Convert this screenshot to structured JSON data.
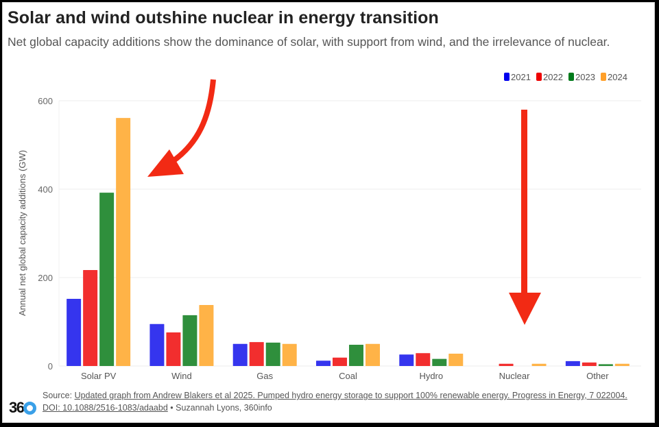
{
  "header": {
    "title": "Solar and wind outshine nuclear in energy transition",
    "subtitle": "Net global capacity additions show the dominance of solar, with support from wind, and the irrelevance of nuclear."
  },
  "footer": {
    "source_prefix": "Source: ",
    "source_link": "Updated graph from Andrew Blakers et al 2025. Pumped hydro energy storage to support 100% renewable energy. Progress in Energy, 7 022004. DOI: 10.1088/2516-1083/adaabd",
    "credit": " • Suzannah Lyons, 360info",
    "logo_text": "36",
    "logo_name": "360info"
  },
  "colors": {
    "bars": [
      "#3535ee",
      "#f22e2e",
      "#2f8f3c",
      "#ffb347"
    ],
    "legend": [
      "#0000ee",
      "#ee0000",
      "#007a1a",
      "#ffa02a"
    ],
    "arrow": "#f22a14",
    "grid": "#ececec"
  },
  "annotations": [
    {
      "type": "curved-arrow",
      "points_to": "Solar PV"
    },
    {
      "type": "straight-arrow",
      "points_to": "Nuclear"
    }
  ],
  "chart_data": {
    "type": "bar",
    "title": "Solar and wind outshine nuclear in energy transition",
    "xlabel": "",
    "ylabel": "Annual net global capacity additions (GW)",
    "ylim": [
      0,
      600
    ],
    "yticks": [
      0,
      200,
      400,
      600
    ],
    "grid": true,
    "legend_position": "top-right",
    "categories": [
      "Solar PV",
      "Wind",
      "Gas",
      "Coal",
      "Hydro",
      "Nuclear",
      "Other"
    ],
    "series": [
      {
        "name": "2021",
        "values": [
          152,
          95,
          50,
          12,
          26,
          0,
          11
        ]
      },
      {
        "name": "2022",
        "values": [
          217,
          76,
          54,
          19,
          29,
          5,
          8
        ]
      },
      {
        "name": "2023",
        "values": [
          392,
          115,
          53,
          48,
          16,
          0,
          4
        ]
      },
      {
        "name": "2024",
        "values": [
          561,
          138,
          50,
          50,
          28,
          5,
          5
        ]
      }
    ]
  }
}
